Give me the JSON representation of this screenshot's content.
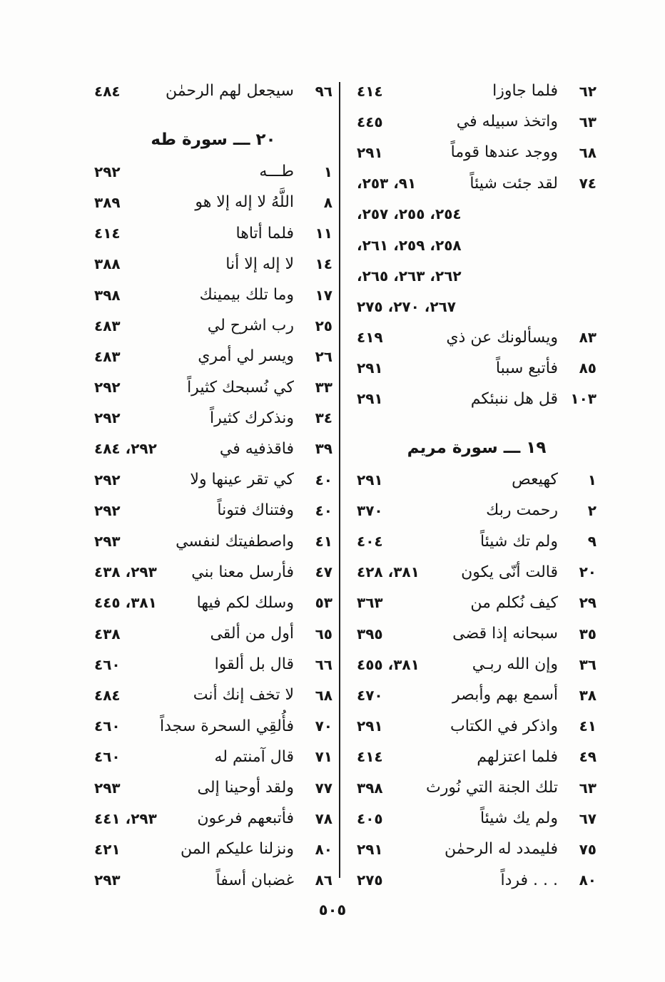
{
  "page_number": "٥٠٥",
  "columns": {
    "right": {
      "sections": [
        {
          "header": "",
          "entries": [
            {
              "verse": "٦٢",
              "text": "فلما جاوزا",
              "pages": "٤١٤"
            },
            {
              "verse": "٦٣",
              "text": "واتخذ سبيله في",
              "pages": "٤٤٥"
            },
            {
              "verse": "٦٨",
              "text": "ووجد عندها قوماً",
              "pages": "٢٩١"
            },
            {
              "verse": "٧٤",
              "text": "لقد جئت شيئاً",
              "pages": "٩١، ٢٥٣،",
              "continuation": [
                "٢٥٤، ٢٥٥، ٢٥٧،",
                "٢٥٨، ٢٥٩، ٢٦١،",
                "٢٦٢، ٢٦٣، ٢٦٥،",
                "٢٦٧، ٢٧٠، ٢٧٥"
              ]
            },
            {
              "verse": "٨٣",
              "text": "ويسألونك عن ذي",
              "pages": "٤١٩"
            },
            {
              "verse": "٨٥",
              "text": "فأتبع سبباً",
              "pages": "٢٩١"
            },
            {
              "verse": "١٠٣",
              "text": "قل هل ننبئكم",
              "pages": "٢٩١"
            }
          ]
        },
        {
          "header": "١٩ ـــ سورة مريم",
          "entries": [
            {
              "verse": "١",
              "text": "كهيعص",
              "pages": "٢٩١"
            },
            {
              "verse": "٢",
              "text": "رحمت ربك",
              "pages": "٣٧٠"
            },
            {
              "verse": "٩",
              "text": "ولم تك شيئاً",
              "pages": "٤٠٤"
            },
            {
              "verse": "٢٠",
              "text": "قالت أنّى يكون",
              "pages": "٣٨١، ٤٢٨"
            },
            {
              "verse": "٢٩",
              "text": "كيف نُكلم من",
              "pages": "٣٦٣"
            },
            {
              "verse": "٣٥",
              "text": "سبحانه إذا قضى",
              "pages": "٣٩٥"
            },
            {
              "verse": "٣٦",
              "text": "وإن الله ربـي",
              "pages": "٣٨١، ٤٥٥"
            },
            {
              "verse": "٣٨",
              "text": "أسمع بهم وأبصر",
              "pages": "٤٧٠"
            },
            {
              "verse": "٤١",
              "text": "واذكر في الكتاب",
              "pages": "٢٩١"
            },
            {
              "verse": "٤٩",
              "text": "فلما اعتزلهم",
              "pages": "٤١٤"
            },
            {
              "verse": "٦٣",
              "text": "تلك الجنة التي نُورث",
              "pages": "٣٩٨"
            },
            {
              "verse": "٦٧",
              "text": "ولم يك شيئاً",
              "pages": "٤٠٥"
            },
            {
              "verse": "٧٥",
              "text": "فليمدد له الرحمٰن",
              "pages": "٢٩١"
            },
            {
              "verse": "٨٠",
              "text": ". . . فرداً",
              "pages": "٢٧٥"
            }
          ]
        }
      ]
    },
    "left": {
      "sections": [
        {
          "header": "",
          "entries": [
            {
              "verse": "٩٦",
              "text": "سيجعل لهم الرحمٰن",
              "pages": "٤٨٤"
            }
          ]
        },
        {
          "header": "٢٠ ـــ سورة طه",
          "entries": [
            {
              "verse": "١",
              "text": "طـــه",
              "pages": "٢٩٢"
            },
            {
              "verse": "٨",
              "text": "اللَّهُ لا إله إلا هو",
              "pages": "٣٨٩"
            },
            {
              "verse": "١١",
              "text": "فلما أتاها",
              "pages": "٤١٤"
            },
            {
              "verse": "١٤",
              "text": "لا إله إلا أنا",
              "pages": "٣٨٨"
            },
            {
              "verse": "١٧",
              "text": "وما تلك بيمينك",
              "pages": "٣٩٨"
            },
            {
              "verse": "٢٥",
              "text": "رب اشرح لي",
              "pages": "٤٨٣"
            },
            {
              "verse": "٢٦",
              "text": "ويسر لي أمري",
              "pages": "٤٨٣"
            },
            {
              "verse": "٣٣",
              "text": "كي نُسبحك كثيراً",
              "pages": "٢٩٢"
            },
            {
              "verse": "٣٤",
              "text": "ونذكرك كثيراً",
              "pages": "٢٩٢"
            },
            {
              "verse": "٣٩",
              "text": "فاقذفيه في",
              "pages": "٢٩٢، ٤٨٤"
            },
            {
              "verse": "٤٠",
              "text": "كي تقر عينها ولا",
              "pages": "٢٩٢"
            },
            {
              "verse": "٤٠",
              "text": "وفتناك فتوناً",
              "pages": "٢٩٢"
            },
            {
              "verse": "٤١",
              "text": "واصطفيتك لنفسي",
              "pages": "٢٩٣"
            },
            {
              "verse": "٤٧",
              "text": "فأرسل معنا بني",
              "pages": "٢٩٣، ٤٣٨"
            },
            {
              "verse": "٥٣",
              "text": "وسلك لكم فيها",
              "pages": "٣٨١، ٤٤٥"
            },
            {
              "verse": "٦٥",
              "text": "أول من ألقى",
              "pages": "٤٣٨"
            },
            {
              "verse": "٦٦",
              "text": "قال بل ألقوا",
              "pages": "٤٦٠"
            },
            {
              "verse": "٦٨",
              "text": "لا تخف إنك أنت",
              "pages": "٤٨٤"
            },
            {
              "verse": "٧٠",
              "text": "فأُلقِي السحرة سجداً",
              "pages": "٤٦٠"
            },
            {
              "verse": "٧١",
              "text": "قال آمنتم له",
              "pages": "٤٦٠"
            },
            {
              "verse": "٧٧",
              "text": "ولقد أوحينا إلى",
              "pages": "٢٩٣"
            },
            {
              "verse": "٧٨",
              "text": "فأتبعهم فرعون",
              "pages": "٢٩٣، ٤٤١"
            },
            {
              "verse": "٨٠",
              "text": "ونزلنا عليكم المن",
              "pages": "٤٢١"
            },
            {
              "verse": "٨٦",
              "text": "غضبان أسفاً",
              "pages": "٢٩٣"
            }
          ]
        }
      ]
    }
  }
}
